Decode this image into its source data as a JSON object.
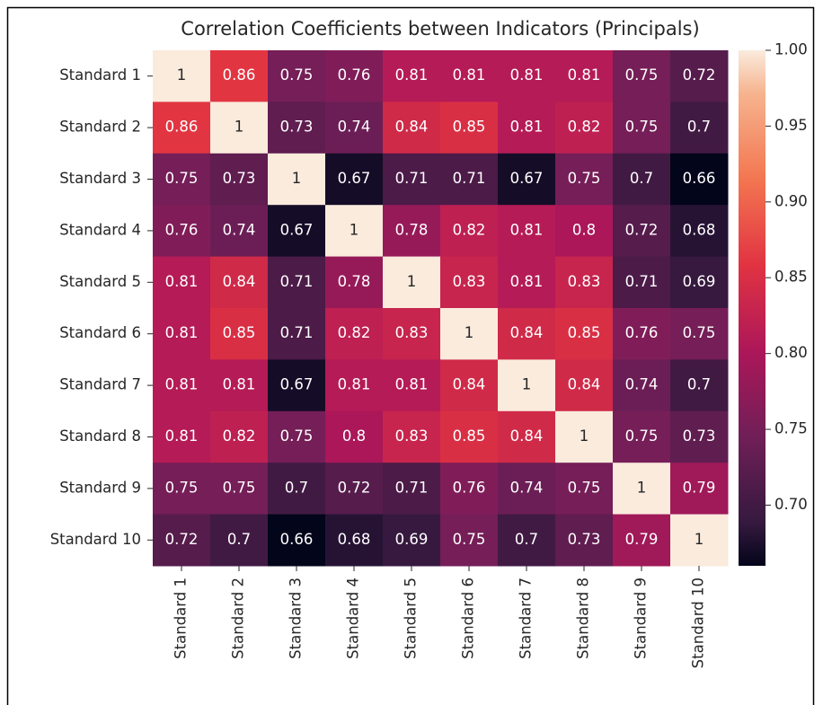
{
  "chart_data": {
    "type": "heatmap",
    "title": "Correlation Coefficients between Indicators (Principals)",
    "x_categories": [
      "Standard 1",
      "Standard 2",
      "Standard 3",
      "Standard 4",
      "Standard 5",
      "Standard 6",
      "Standard 7",
      "Standard 8",
      "Standard 9",
      "Standard 10"
    ],
    "y_categories": [
      "Standard 1",
      "Standard 2",
      "Standard 3",
      "Standard 4",
      "Standard 5",
      "Standard 6",
      "Standard 7",
      "Standard 8",
      "Standard 9",
      "Standard 10"
    ],
    "values": [
      [
        1,
        0.86,
        0.75,
        0.76,
        0.81,
        0.81,
        0.81,
        0.81,
        0.75,
        0.72
      ],
      [
        0.86,
        1,
        0.73,
        0.74,
        0.84,
        0.85,
        0.81,
        0.82,
        0.75,
        0.7
      ],
      [
        0.75,
        0.73,
        1,
        0.67,
        0.71,
        0.71,
        0.67,
        0.75,
        0.7,
        0.66
      ],
      [
        0.76,
        0.74,
        0.67,
        1,
        0.78,
        0.82,
        0.81,
        0.8,
        0.72,
        0.68
      ],
      [
        0.81,
        0.84,
        0.71,
        0.78,
        1,
        0.83,
        0.81,
        0.83,
        0.71,
        0.69
      ],
      [
        0.81,
        0.85,
        0.71,
        0.82,
        0.83,
        1,
        0.84,
        0.85,
        0.76,
        0.75
      ],
      [
        0.81,
        0.81,
        0.67,
        0.81,
        0.81,
        0.84,
        1,
        0.84,
        0.74,
        0.7
      ],
      [
        0.81,
        0.82,
        0.75,
        0.8,
        0.83,
        0.85,
        0.84,
        1,
        0.75,
        0.73
      ],
      [
        0.75,
        0.75,
        0.7,
        0.72,
        0.71,
        0.76,
        0.74,
        0.75,
        1,
        0.79
      ],
      [
        0.72,
        0.7,
        0.66,
        0.68,
        0.69,
        0.75,
        0.7,
        0.73,
        0.79,
        1
      ]
    ],
    "zlim": [
      0.66,
      1.0
    ],
    "zticks": [
      {
        "value": 0.7,
        "label": "0.70"
      },
      {
        "value": 0.75,
        "label": "0.75"
      },
      {
        "value": 0.8,
        "label": "0.80"
      },
      {
        "value": 0.85,
        "label": "0.85"
      },
      {
        "value": 0.9,
        "label": "0.90"
      },
      {
        "value": 0.95,
        "label": "0.95"
      },
      {
        "value": 1.0,
        "label": "1.00"
      }
    ],
    "colorscale": [
      "#03051a",
      "#35193e",
      "#701f57",
      "#ad1759",
      "#e13342",
      "#f37651",
      "#f6b48f",
      "#faebdd"
    ],
    "colorscale_positions": [
      0,
      0.083,
      0.25,
      0.417,
      0.583,
      0.75,
      0.917,
      1
    ]
  }
}
